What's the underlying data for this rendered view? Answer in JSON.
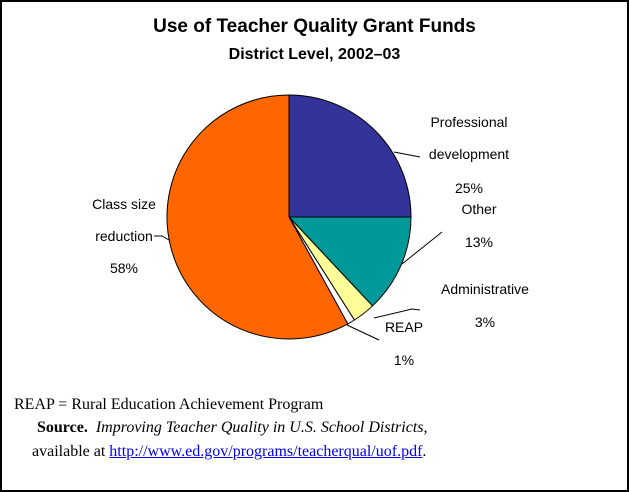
{
  "chart_data": {
    "type": "pie",
    "title": "Use of Teacher Quality Grant Funds",
    "subtitle": "District Level, 2002–03",
    "categories": [
      "Professional development",
      "Other",
      "Administrative",
      "REAP",
      "Class size reduction"
    ],
    "values": [
      25,
      13,
      3,
      1,
      58
    ],
    "value_labels": [
      "25%",
      "13%",
      "3%",
      "1%",
      "58%"
    ],
    "colors": [
      "#333399",
      "#009999",
      "#ffff99",
      "#ffffff",
      "#ff6600"
    ]
  },
  "footnote": "REAP = Rural Education Achievement Program",
  "source": {
    "label": "Source.",
    "title": "Improving Teacher Quality in U.S. School Districts,",
    "text": "available at",
    "link": "http://www.ed.gov/programs/teacherqual/uof.pdf",
    "end": "."
  }
}
